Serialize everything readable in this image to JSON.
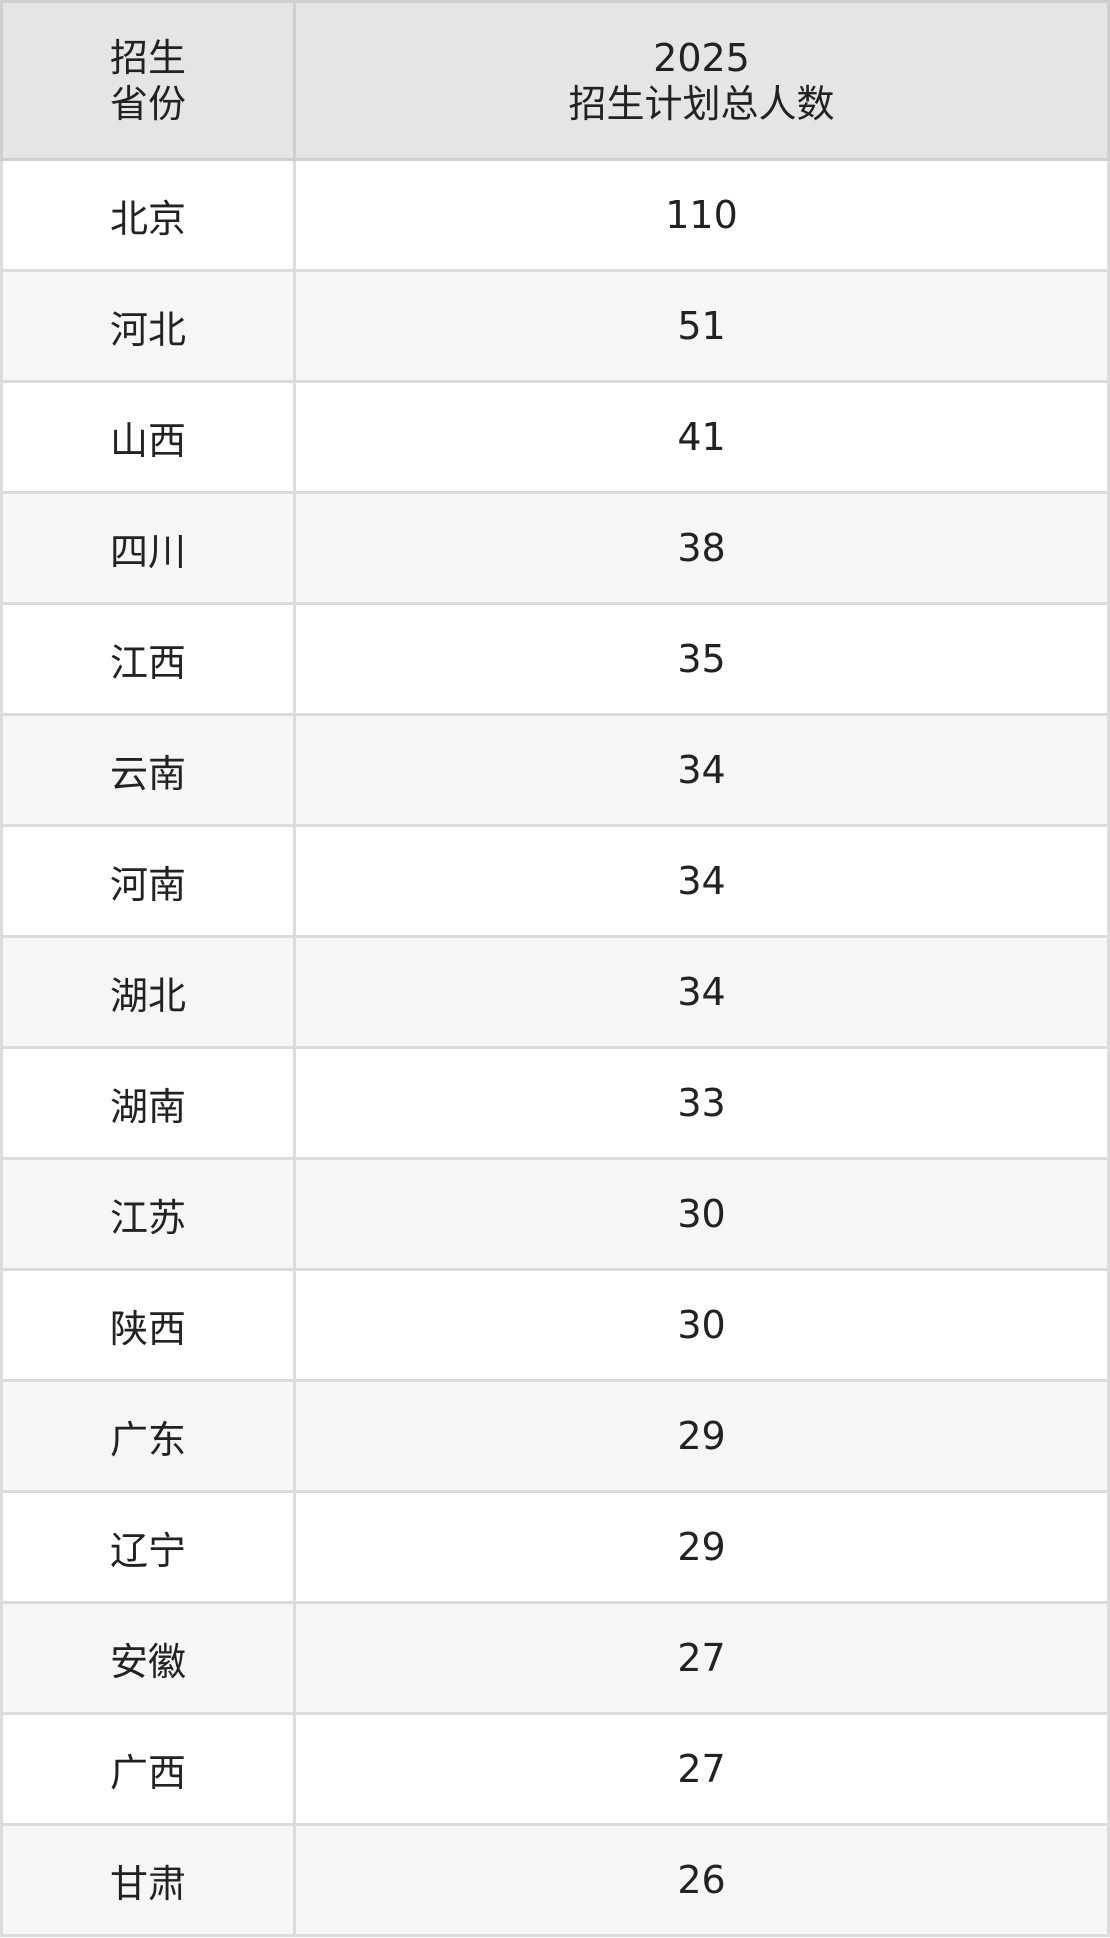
{
  "header": {
    "province_line1": "招生",
    "province_line2": "省份",
    "plan_line1": "2025",
    "plan_line2": "招生计划总人数"
  },
  "rows": [
    {
      "province": "北京",
      "count": "110"
    },
    {
      "province": "河北",
      "count": "51"
    },
    {
      "province": "山西",
      "count": "41"
    },
    {
      "province": "四川",
      "count": "38"
    },
    {
      "province": "江西",
      "count": "35"
    },
    {
      "province": "云南",
      "count": "34"
    },
    {
      "province": "河南",
      "count": "34"
    },
    {
      "province": "湖北",
      "count": "34"
    },
    {
      "province": "湖南",
      "count": "33"
    },
    {
      "province": "江苏",
      "count": "30"
    },
    {
      "province": "陕西",
      "count": "30"
    },
    {
      "province": "广东",
      "count": "29"
    },
    {
      "province": "辽宁",
      "count": "29"
    },
    {
      "province": "安徽",
      "count": "27"
    },
    {
      "province": "广西",
      "count": "27"
    },
    {
      "province": "甘肃",
      "count": "26"
    }
  ]
}
